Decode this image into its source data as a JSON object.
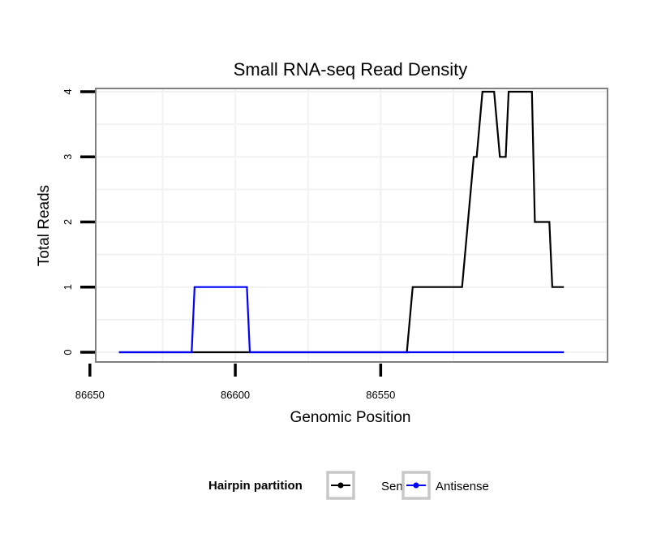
{
  "chart_data": {
    "type": "line",
    "title": "Small RNA-seq Read Density",
    "xlabel": "Genomic Position",
    "ylabel": "Total Reads",
    "xlim": [
      86472,
      86648
    ],
    "x_reversed": true,
    "ylim": [
      -0.15,
      4.05
    ],
    "xticks": [
      86650,
      86600,
      86550
    ],
    "yticks": [
      0,
      1,
      2,
      3,
      4
    ],
    "grid": true,
    "legend": {
      "title": "Hairpin partition",
      "placement": "bottom"
    },
    "series": [
      {
        "name": "Sense",
        "color": "#000000",
        "points": [
          [
            86640,
            0
          ],
          [
            86590,
            0
          ],
          [
            86540,
            0
          ],
          [
            86541,
            0
          ],
          [
            86539,
            1
          ],
          [
            86522,
            1
          ],
          [
            86518,
            3
          ],
          [
            86517,
            3
          ],
          [
            86515,
            4
          ],
          [
            86511,
            4
          ],
          [
            86509,
            3
          ],
          [
            86507,
            3
          ],
          [
            86506,
            4
          ],
          [
            86498,
            4
          ],
          [
            86497,
            2
          ],
          [
            86492,
            2
          ],
          [
            86491,
            1
          ],
          [
            86487,
            1
          ]
        ]
      },
      {
        "name": "Antisense",
        "color": "#0000ff",
        "points": [
          [
            86640,
            0
          ],
          [
            86615,
            0
          ],
          [
            86614,
            1
          ],
          [
            86596,
            1
          ],
          [
            86595,
            0
          ],
          [
            86541,
            0
          ],
          [
            86487,
            0
          ]
        ]
      }
    ]
  }
}
